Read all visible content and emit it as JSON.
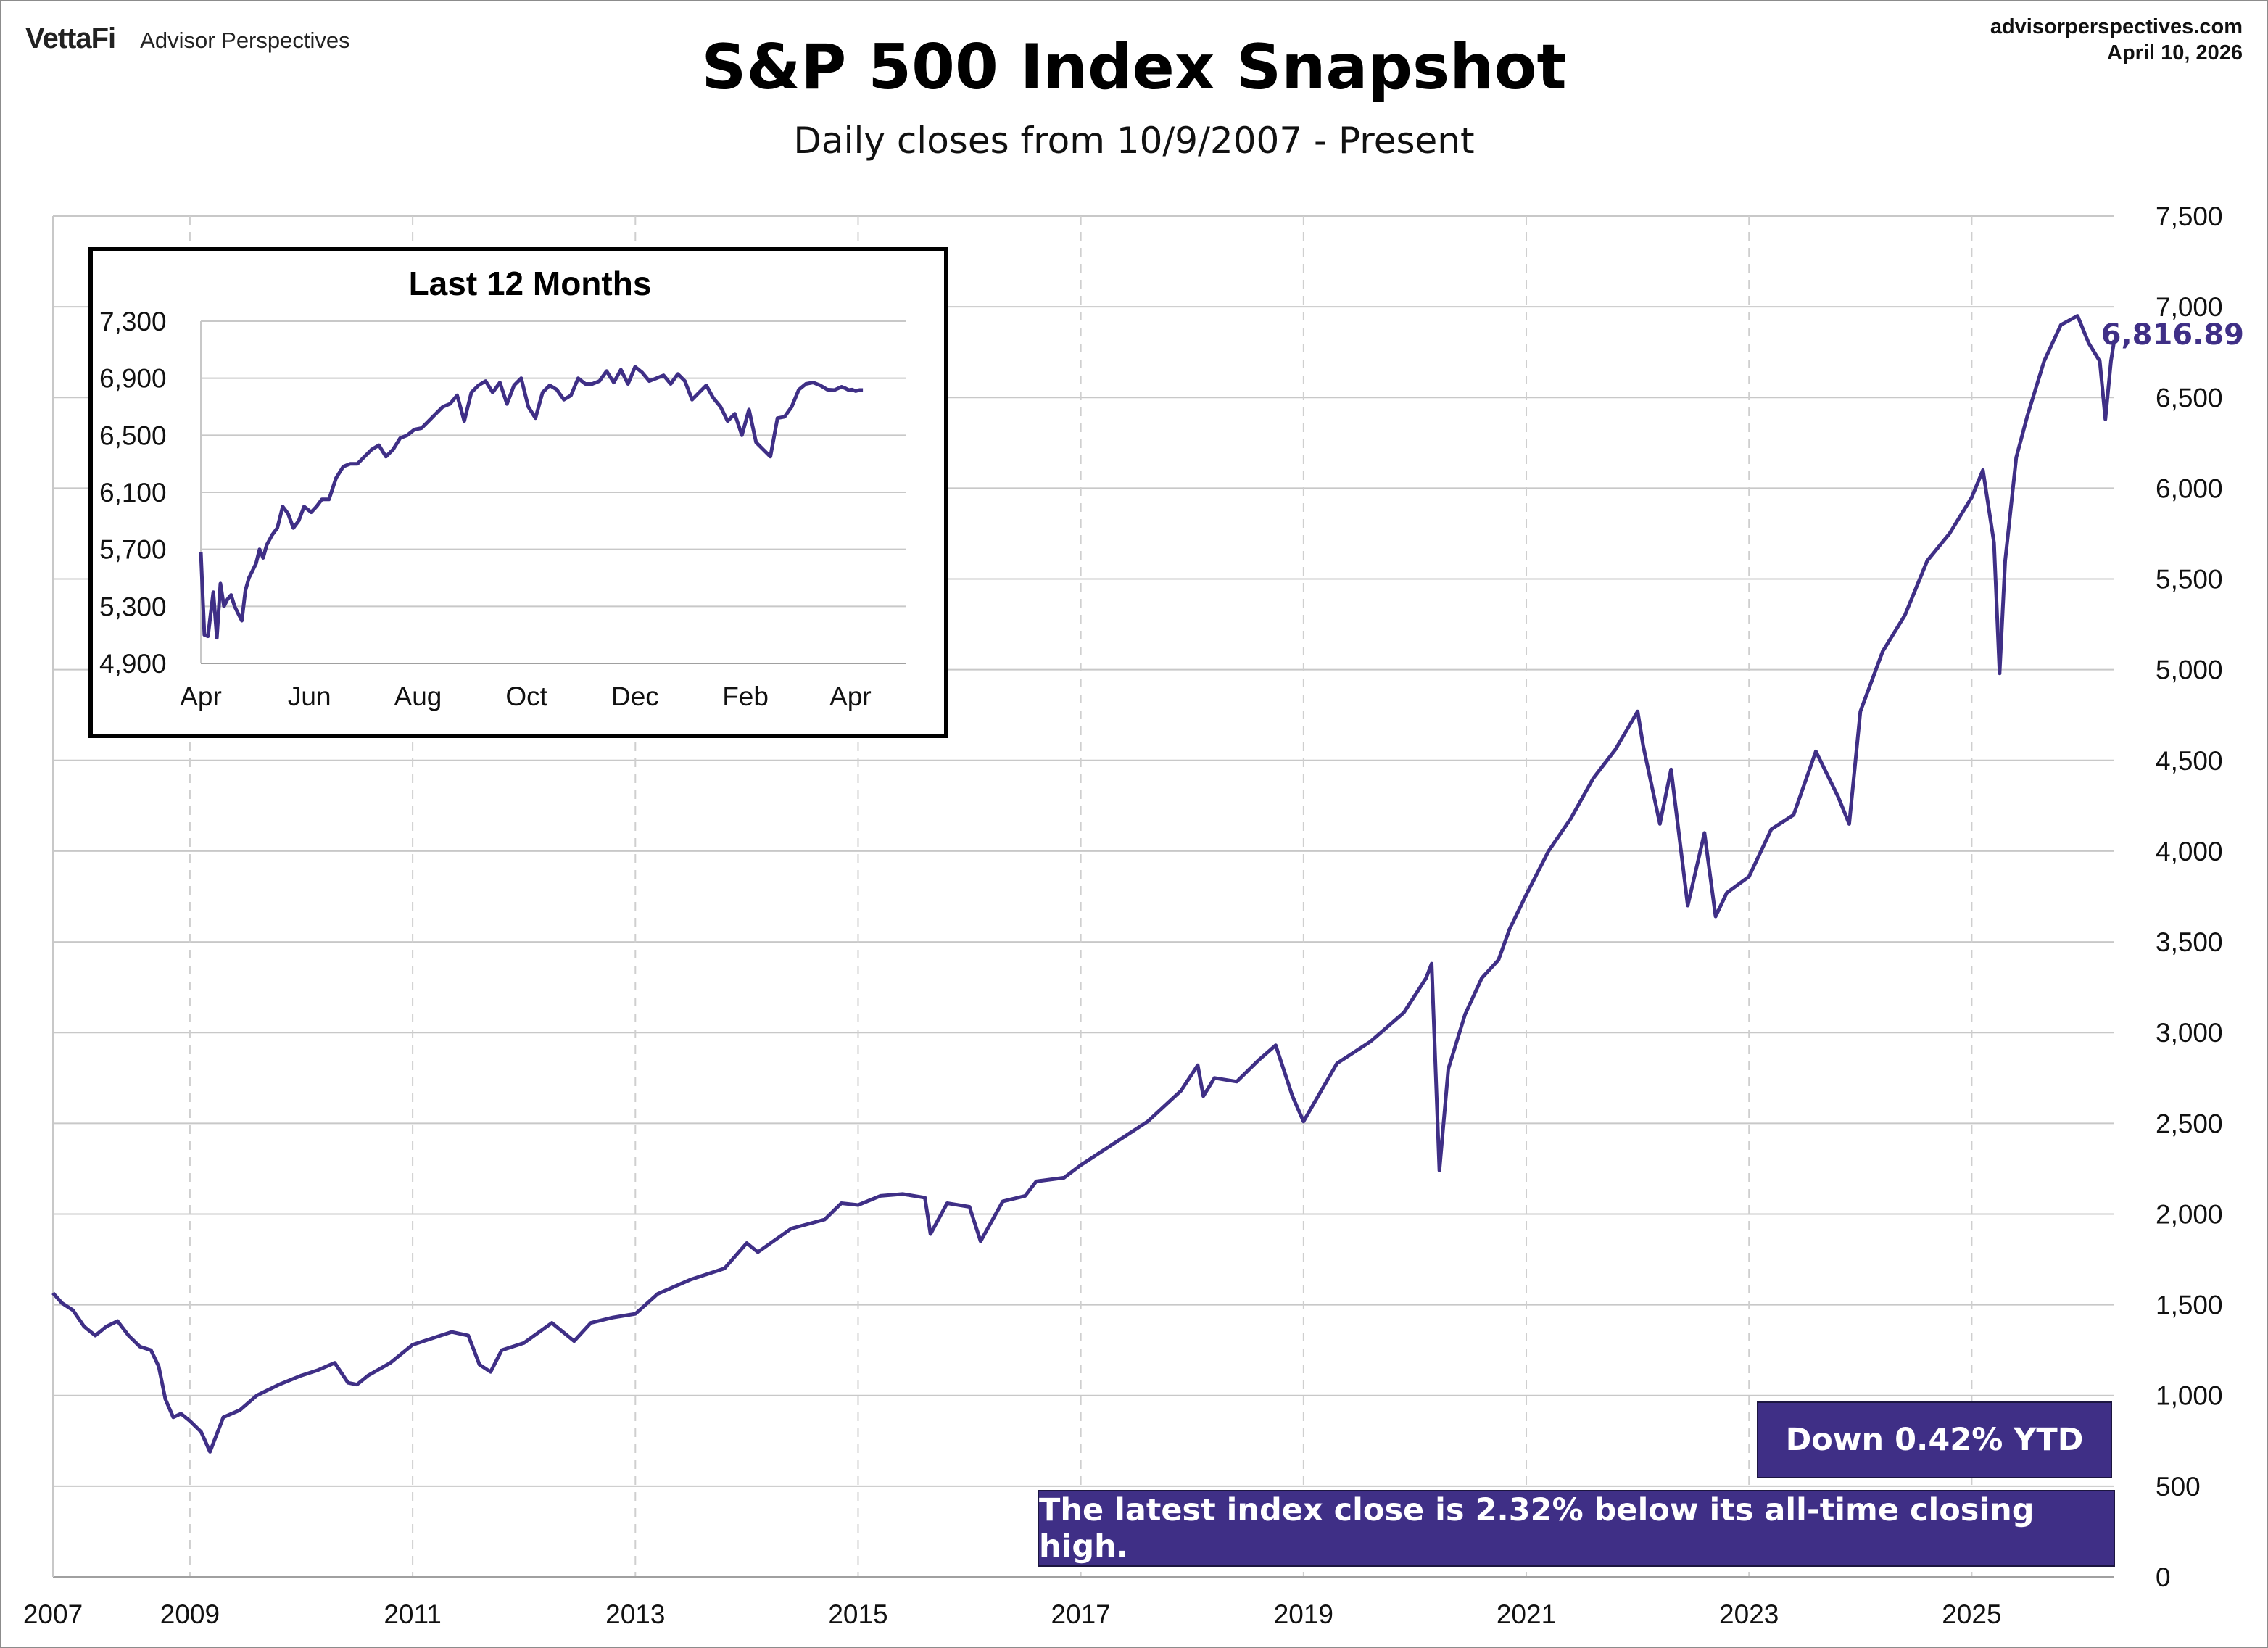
{
  "header": {
    "brand_logo": "VettaFi",
    "brand_publication": "Advisor Perspectives",
    "site": "advisorperspectives.com",
    "date": "April 10, 2026"
  },
  "badges": {
    "ytd": "Down 0.42% YTD",
    "ath": "The latest index close is 2.32% below its all-time closing high."
  },
  "colors": {
    "line": "#3f2f86",
    "badge_bg": "#3f2f86",
    "grid": "#c8c8c8",
    "vgrid": "#cfcfcf",
    "axis": "#a0a0a0"
  },
  "chart_data": [
    {
      "id": "main",
      "type": "line",
      "title": "S&P 500 Index Snapshot",
      "subtitle": "Daily closes from 10/9/2007 - Present",
      "xlabel": "",
      "ylabel": "",
      "x_tick_labels": [
        "2007",
        "2009",
        "2011",
        "2013",
        "2015",
        "2017",
        "2019",
        "2021",
        "2023",
        "2025"
      ],
      "x_tick_values": [
        2007.77,
        2009,
        2011,
        2013,
        2015,
        2017,
        2019,
        2021,
        2023,
        2025
      ],
      "xlim": [
        2007.77,
        2026.28
      ],
      "y_ticks": [
        0,
        500,
        1000,
        1500,
        2000,
        2500,
        3000,
        3500,
        4000,
        4500,
        5000,
        5500,
        6000,
        6500,
        7000,
        7500
      ],
      "ylim": [
        0,
        7500
      ],
      "y_axis_side": "right",
      "grid": {
        "horizontal": "solid",
        "vertical": "dashed"
      },
      "last_value_label": "6,816.89",
      "series": [
        {
          "x": [
            2007.77,
            2007.85,
            2007.95,
            2008.05,
            2008.15,
            2008.25,
            2008.35,
            2008.45,
            2008.55,
            2008.65,
            2008.72,
            2008.78,
            2008.85,
            2008.92,
            2009.0,
            2009.1,
            2009.18,
            2009.3,
            2009.45,
            2009.6,
            2009.8,
            2010.0,
            2010.15,
            2010.3,
            2010.42,
            2010.5,
            2010.6,
            2010.8,
            2011.0,
            2011.2,
            2011.35,
            2011.5,
            2011.6,
            2011.7,
            2011.8,
            2012.0,
            2012.25,
            2012.45,
            2012.6,
            2012.8,
            2013.0,
            2013.2,
            2013.5,
            2013.8,
            2014.0,
            2014.1,
            2014.4,
            2014.7,
            2014.85,
            2015.0,
            2015.2,
            2015.4,
            2015.6,
            2015.65,
            2015.8,
            2016.0,
            2016.1,
            2016.3,
            2016.5,
            2016.6,
            2016.85,
            2017.0,
            2017.3,
            2017.6,
            2017.9,
            2018.05,
            2018.1,
            2018.2,
            2018.4,
            2018.6,
            2018.75,
            2018.9,
            2019.0,
            2019.3,
            2019.6,
            2019.9,
            2020.1,
            2020.15,
            2020.22,
            2020.3,
            2020.45,
            2020.6,
            2020.75,
            2020.85,
            2021.0,
            2021.2,
            2021.4,
            2021.6,
            2021.8,
            2022.0,
            2022.05,
            2022.2,
            2022.3,
            2022.45,
            2022.6,
            2022.7,
            2022.8,
            2023.0,
            2023.2,
            2023.4,
            2023.6,
            2023.8,
            2023.9,
            2024.0,
            2024.2,
            2024.4,
            2024.6,
            2024.8,
            2025.0,
            2025.1,
            2025.2,
            2025.25,
            2025.3,
            2025.4,
            2025.5,
            2025.65,
            2025.8,
            2025.95,
            2026.05,
            2026.15,
            2026.2,
            2026.25,
            2026.28
          ],
          "y": [
            1565,
            1510,
            1470,
            1380,
            1330,
            1380,
            1410,
            1330,
            1270,
            1250,
            1160,
            980,
            880,
            900,
            860,
            800,
            690,
            880,
            920,
            1000,
            1060,
            1110,
            1140,
            1180,
            1070,
            1060,
            1110,
            1180,
            1280,
            1320,
            1350,
            1330,
            1170,
            1130,
            1250,
            1290,
            1400,
            1300,
            1400,
            1430,
            1450,
            1560,
            1640,
            1700,
            1840,
            1790,
            1920,
            1970,
            2060,
            2050,
            2100,
            2110,
            2090,
            1890,
            2060,
            2040,
            1850,
            2070,
            2100,
            2180,
            2200,
            2270,
            2390,
            2510,
            2680,
            2820,
            2650,
            2750,
            2730,
            2850,
            2930,
            2650,
            2510,
            2830,
            2950,
            3110,
            3300,
            3380,
            2240,
            2800,
            3100,
            3300,
            3400,
            3570,
            3760,
            4000,
            4180,
            4400,
            4560,
            4770,
            4580,
            4150,
            4450,
            3700,
            4100,
            3640,
            3770,
            3860,
            4120,
            4200,
            4550,
            4300,
            4150,
            4770,
            5100,
            5300,
            5600,
            5750,
            5950,
            6100,
            5700,
            4980,
            5600,
            6170,
            6400,
            6700,
            6900,
            6950,
            6800,
            6700,
            6380,
            6700,
            6816.89
          ]
        }
      ]
    },
    {
      "id": "inset",
      "type": "line",
      "title": "Last 12 Months",
      "xlabel": "",
      "ylabel": "",
      "x_tick_labels": [
        "Apr",
        "Jun",
        "Aug",
        "Oct",
        "Dec",
        "Feb",
        "Apr"
      ],
      "x_tick_values": [
        0,
        61,
        122,
        183,
        244,
        306,
        365
      ],
      "xlim": [
        0,
        396
      ],
      "y_ticks": [
        4900,
        5300,
        5700,
        6100,
        6500,
        6900,
        7300
      ],
      "ylim": [
        4900,
        7300
      ],
      "y_axis_side": "left",
      "grid": {
        "horizontal": "solid",
        "vertical": "none"
      },
      "series": [
        {
          "x": [
            0,
            2,
            4,
            7,
            9,
            11,
            13,
            15,
            17,
            19,
            21,
            23,
            25,
            27,
            29,
            31,
            33,
            35,
            37,
            40,
            43,
            46,
            49,
            52,
            55,
            58,
            62,
            65,
            68,
            72,
            76,
            80,
            84,
            88,
            92,
            96,
            100,
            104,
            108,
            112,
            116,
            120,
            124,
            128,
            132,
            136,
            140,
            144,
            148,
            152,
            156,
            160,
            164,
            168,
            172,
            176,
            180,
            184,
            188,
            192,
            196,
            200,
            204,
            208,
            212,
            216,
            220,
            224,
            228,
            232,
            236,
            240,
            244,
            248,
            252,
            256,
            260,
            264,
            268,
            272,
            276,
            280,
            284,
            288,
            292,
            296,
            300,
            304,
            308,
            312,
            316,
            320,
            324,
            328,
            332,
            336,
            340,
            344,
            348,
            352,
            356,
            360,
            362,
            364,
            366,
            368,
            370,
            372
          ],
          "y": [
            5680,
            5100,
            5090,
            5400,
            5080,
            5460,
            5300,
            5350,
            5380,
            5300,
            5250,
            5200,
            5410,
            5500,
            5550,
            5600,
            5700,
            5640,
            5730,
            5800,
            5850,
            6000,
            5950,
            5850,
            5900,
            6000,
            5960,
            6000,
            6050,
            6050,
            6200,
            6280,
            6300,
            6300,
            6350,
            6400,
            6430,
            6350,
            6400,
            6480,
            6500,
            6540,
            6550,
            6600,
            6650,
            6700,
            6720,
            6780,
            6600,
            6800,
            6850,
            6880,
            6800,
            6870,
            6720,
            6850,
            6900,
            6700,
            6620,
            6800,
            6850,
            6820,
            6750,
            6780,
            6900,
            6860,
            6860,
            6880,
            6950,
            6870,
            6960,
            6860,
            6980,
            6940,
            6880,
            6900,
            6920,
            6860,
            6930,
            6880,
            6750,
            6800,
            6850,
            6760,
            6700,
            6600,
            6650,
            6500,
            6680,
            6450,
            6400,
            6350,
            6620,
            6630,
            6700,
            6820,
            6860,
            6870,
            6850,
            6820,
            6817,
            6840,
            6830,
            6816.89,
            6820,
            6810,
            6816.89,
            6816.89
          ]
        }
      ]
    }
  ]
}
